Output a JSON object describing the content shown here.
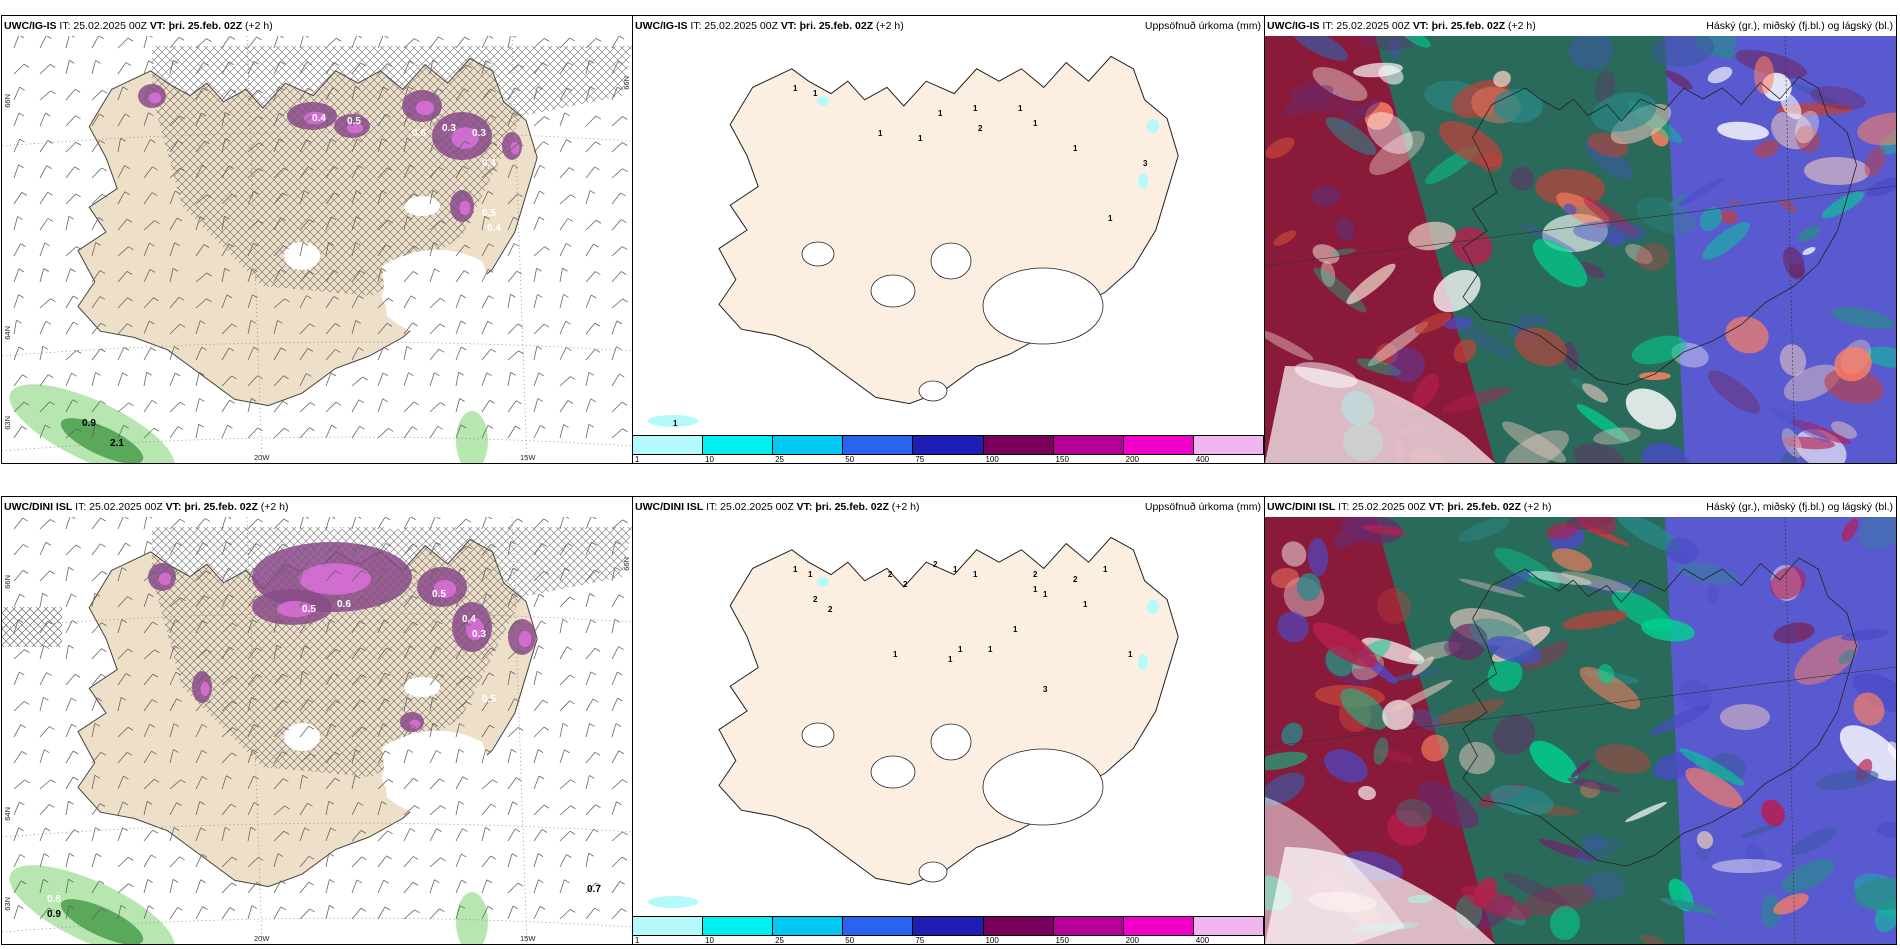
{
  "panels": {
    "top_wind": {
      "model": "UWC/IG-IS",
      "it": "IT: 25.02.2025 00Z",
      "vt_label": "VT:",
      "vt": "þri. 25.feb. 02Z",
      "lead": "(+2 h)"
    },
    "top_precip": {
      "model": "UWC/IG-IS",
      "it": "IT: 25.02.2025 00Z",
      "vt_label": "VT:",
      "vt": "þri. 25.feb. 02Z",
      "lead": "(+2 h)",
      "right": "Uppsöfnuð úrkoma (mm)"
    },
    "top_cloud": {
      "model": "UWC/IG-IS",
      "it": "IT: 25.02.2025 00Z",
      "vt_label": "VT:",
      "vt": "þri. 25.feb. 02Z",
      "lead": "(+2 h)",
      "right": "Háský (gr.), miðský (fj.bl.) og lágský (bl.)"
    },
    "bot_wind": {
      "model": "UWC/DINI ISL",
      "it": "IT: 25.02.2025 00Z",
      "vt_label": "VT:",
      "vt": "þri. 25.feb. 02Z",
      "lead": "(+2 h)"
    },
    "bot_precip": {
      "model": "UWC/DINI ISL",
      "it": "IT: 25.02.2025 00Z",
      "vt_label": "VT:",
      "vt": "þri. 25.feb. 02Z",
      "lead": "(+2 h)",
      "right": "Uppsöfnuð úrkoma (mm)"
    },
    "bot_cloud": {
      "model": "UWC/DINI ISL",
      "it": "IT: 25.02.2025 00Z",
      "vt_label": "VT:",
      "vt": "þri. 25.feb. 02Z",
      "lead": "(+2 h)",
      "right": "Háský (gr.), miðský (fj.bl.) og lágský (bl.)"
    }
  },
  "axes": {
    "lat66": "66N",
    "lat64": "64N",
    "lat63": "63N",
    "lon20": "20W",
    "lon15": "15W"
  },
  "colorbar": {
    "labels": [
      "1",
      "10",
      "25",
      "50",
      "75",
      "100",
      "150",
      "200",
      "400"
    ],
    "colors": [
      "#b4fafa",
      "#00f0f0",
      "#00c8f0",
      "#2864f0",
      "#1e1eb4",
      "#78005a",
      "#b40096",
      "#f000c8",
      "#f0b4f0"
    ]
  },
  "wind_values_top": [
    "0.4",
    "0.5",
    "0.6",
    "0.3",
    "0.3",
    "0.4",
    "0.5",
    "0.4",
    "0.9",
    "2.1"
  ],
  "wind_values_bot": [
    "0.3",
    "0.3",
    "0.5",
    "0.6",
    "0.5",
    "0.4",
    "0.3",
    "0.6",
    "0.5",
    "0.8",
    "0.9",
    "0.7"
  ],
  "precip_values_top": [
    "1",
    "1",
    "1",
    "1",
    "1",
    "1",
    "2",
    "1",
    "1",
    "1",
    "3",
    "1",
    "1"
  ],
  "precip_values_bot": [
    "1",
    "1",
    "2",
    "2",
    "2",
    "2",
    "2",
    "1",
    "1",
    "2",
    "1",
    "1",
    "2",
    "1",
    "1",
    "1",
    "1",
    "1",
    "1",
    "1",
    "3",
    "1"
  ]
}
